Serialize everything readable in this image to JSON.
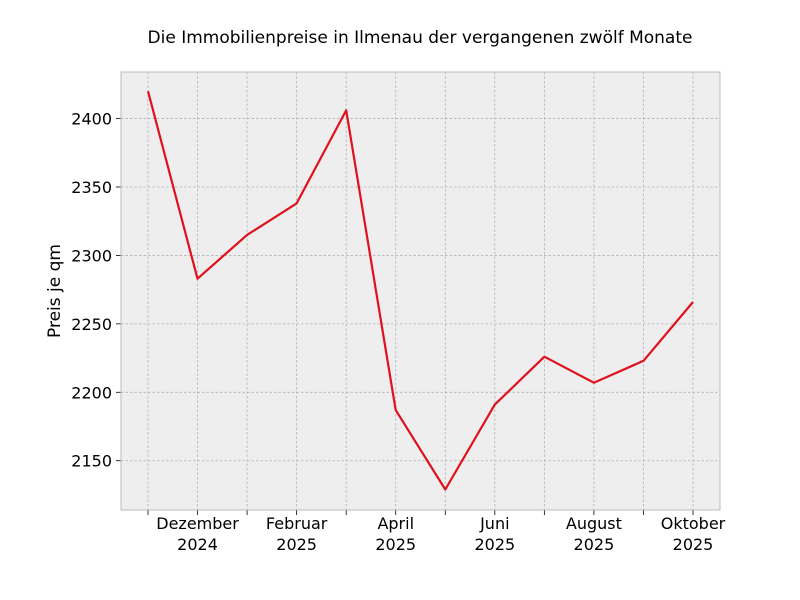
{
  "chart_data": {
    "type": "line",
    "title": "Die Immobilienpreise in Ilmenau der vergangenen zwölf Monate",
    "xlabel": "",
    "ylabel": "Preis je qm",
    "x": [
      "2024-11",
      "2024-12",
      "2025-01",
      "2025-02",
      "2025-03",
      "2025-04",
      "2025-05",
      "2025-06",
      "2025-07",
      "2025-08",
      "2025-09",
      "2025-10"
    ],
    "series": [
      {
        "values": [
          2420,
          2283,
          2315,
          2338,
          2406,
          2187,
          2129,
          2191,
          2226,
          2207,
          2223,
          2266
        ]
      }
    ],
    "ylim": [
      2114,
      2434
    ],
    "yticks": [
      2150,
      2200,
      2250,
      2300,
      2350,
      2400
    ],
    "xtick_labels": [
      {
        "x": "2024-12",
        "line1": "Dezember",
        "line2": "2024"
      },
      {
        "x": "2025-02",
        "line1": "Februar",
        "line2": "2025"
      },
      {
        "x": "2025-04",
        "line1": "April",
        "line2": "2025"
      },
      {
        "x": "2025-06",
        "line1": "Juni",
        "line2": "2025"
      },
      {
        "x": "2025-08",
        "line1": "August",
        "line2": "2025"
      },
      {
        "x": "2025-10",
        "line1": "Oktober",
        "line2": "2025"
      }
    ],
    "grid": true,
    "line_color": "#e0101e",
    "background_color": "#eeeeee"
  }
}
